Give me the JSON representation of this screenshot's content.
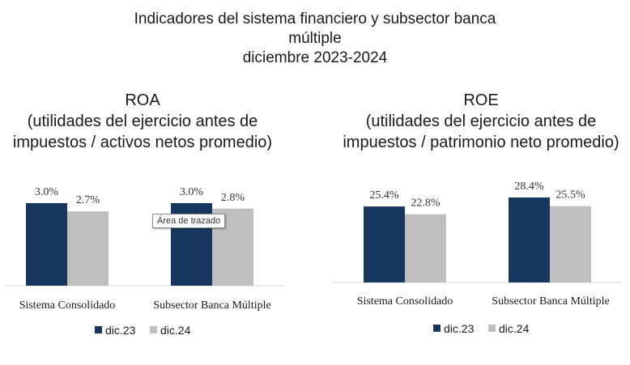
{
  "title_lines": [
    "Indicadores del sistema financiero y subsector banca",
    "múltiple",
    "diciembre 2023-2024"
  ],
  "tooltip": "Área de trazado",
  "colors": {
    "dic23": "#17375e",
    "dic24": "#bfbfbf",
    "axis": "#d9d9d9"
  },
  "chart_data": [
    {
      "type": "bar",
      "title_lines": [
        "ROA",
        "(utilidades del ejercicio antes de",
        "impuestos / activos netos promedio)"
      ],
      "categories": [
        "Sistema Consolidado",
        "Subsector Banca Múltiple"
      ],
      "series": [
        {
          "name": "dic.23",
          "values": [
            3.0,
            3.0
          ],
          "labels": [
            "3.0%",
            "3.0%"
          ]
        },
        {
          "name": "dic.24",
          "values": [
            2.7,
            2.8
          ],
          "labels": [
            "2.7%",
            "2.8%"
          ]
        }
      ],
      "legend": "bottom",
      "ylim": [
        0,
        3.0
      ]
    },
    {
      "type": "bar",
      "title_lines": [
        "ROE",
        "(utilidades del ejercicio antes de",
        "impuestos / patrimonio neto promedio)"
      ],
      "categories": [
        "Sistema Consolidado",
        "Subsector Banca Múltiple"
      ],
      "series": [
        {
          "name": "dic.23",
          "values": [
            25.4,
            28.4
          ],
          "labels": [
            "25.4%",
            "28.4%"
          ]
        },
        {
          "name": "dic.24",
          "values": [
            22.8,
            25.5
          ],
          "labels": [
            "22.8%",
            "25.5%"
          ]
        }
      ],
      "legend": "bottom",
      "ylim": [
        0,
        28.4
      ]
    }
  ]
}
